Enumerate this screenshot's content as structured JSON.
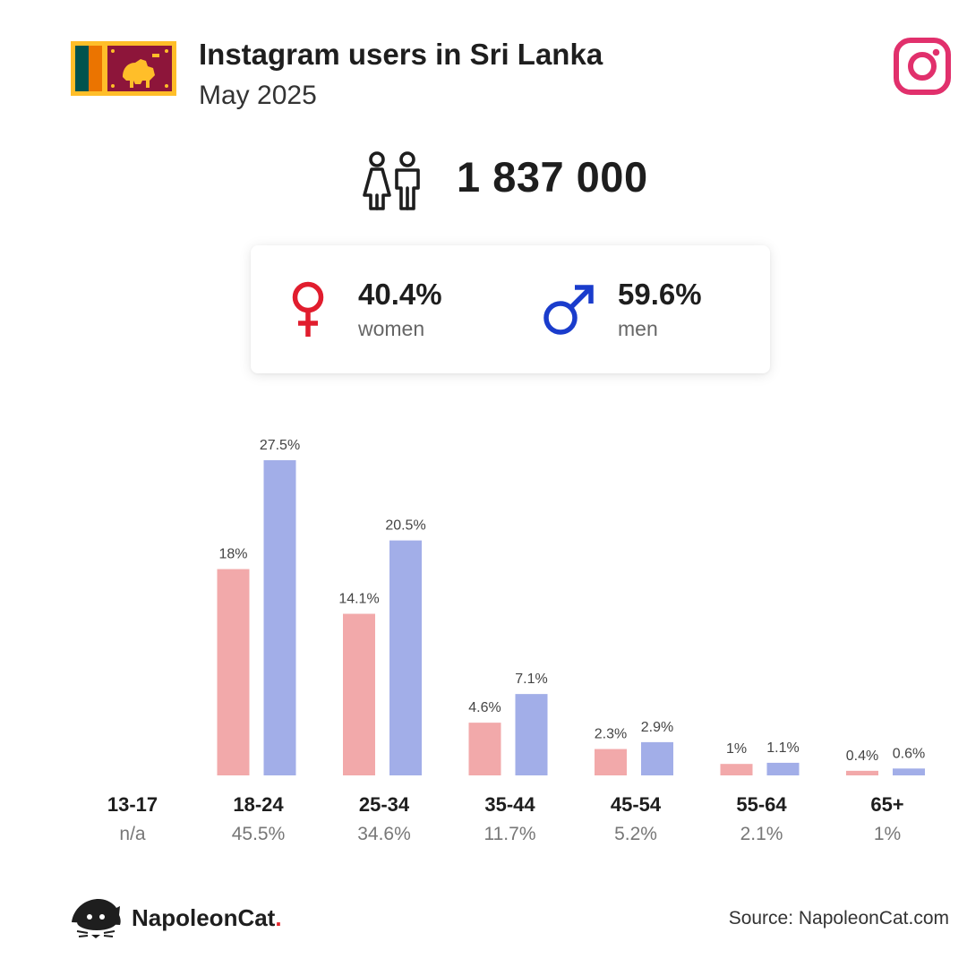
{
  "header": {
    "title": "Instagram users in Sri Lanka",
    "subtitle": "May 2025",
    "flag_icon": "sri-lanka-flag-icon",
    "platform_icon": "instagram-icon"
  },
  "summary": {
    "total_users": "1 837 000",
    "people_icon": "people-icon",
    "women": {
      "percent": "40.4%",
      "label": "women",
      "color": "#e11d2e"
    },
    "men": {
      "percent": "59.6%",
      "label": "men",
      "color": "#1a3ccc"
    }
  },
  "chart_data": {
    "type": "bar",
    "categories": [
      "13-17",
      "18-24",
      "25-34",
      "35-44",
      "45-54",
      "55-64",
      "65+"
    ],
    "category_totals": [
      "n/a",
      "45.5%",
      "34.6%",
      "11.7%",
      "5.2%",
      "2.1%",
      "1%"
    ],
    "series": [
      {
        "values": [
          null,
          18,
          14.1,
          4.6,
          2.3,
          1,
          0.4
        ],
        "labels": [
          "",
          "18%",
          "14.1%",
          "4.6%",
          "2.3%",
          "1%",
          "0.4%"
        ],
        "color": "#f2a9aa"
      },
      {
        "values": [
          null,
          27.5,
          20.5,
          7.1,
          2.9,
          1.1,
          0.6
        ],
        "labels": [
          "",
          "27.5%",
          "20.5%",
          "7.1%",
          "2.9%",
          "1.1%",
          "0.6%"
        ],
        "color": "#a2aee8"
      }
    ],
    "ylim": [
      0,
      27.5
    ],
    "grid": false,
    "legend": "none"
  },
  "footer": {
    "brand_name": "NapoleonCat",
    "brand_dot": ".",
    "brand_icon": "napoleoncat-logo-icon",
    "source": "Source: NapoleonCat.com"
  }
}
